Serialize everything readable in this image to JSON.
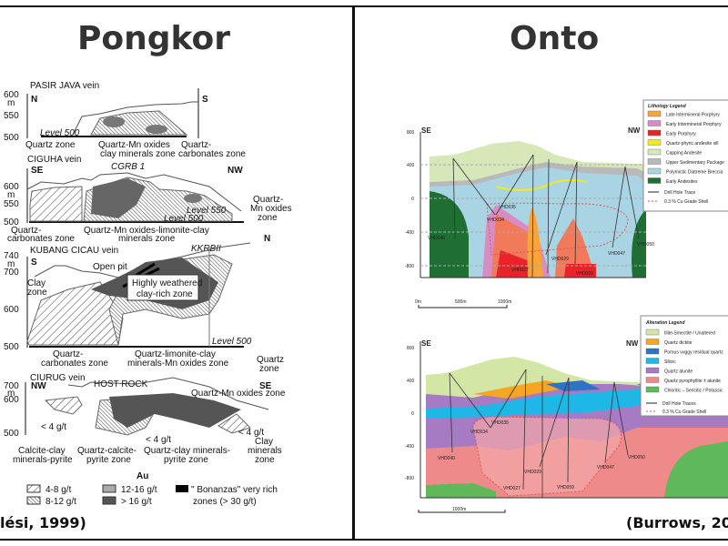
{
  "left_panel": {
    "title": "Pongkor",
    "citation": "lési, 1999)",
    "pasir_java": {
      "name": "PASIR JAVA vein",
      "left_dir": "N",
      "right_dir": "S",
      "unit": "m",
      "ticks": [
        "600",
        "550",
        "500"
      ],
      "level": "Level 500",
      "zones": [
        "Quartz zone",
        "Quartz-Mn oxides",
        "clay minerals zone",
        "Quartz-",
        "carbonates zone"
      ]
    },
    "ciguha": {
      "name": "CIGUHA vein",
      "left_dir": "SE",
      "right_dir": "NW",
      "unit": "m",
      "borehole": "CGRB 1",
      "ticks": [
        "600",
        "550",
        "500"
      ],
      "level_550": "Level 550",
      "level_500": "Level 500",
      "zones": [
        "Quartz-",
        "carbonates zone",
        "Quartz-Mn oxides-limonite-clay",
        "minerals zone",
        "Quartz-",
        "Mn oxides",
        "zone"
      ]
    },
    "kubang_cicau": {
      "name": "KUBANG CICAU vein",
      "left_dir": "S",
      "right_dir": "N",
      "unit": "m",
      "borehole": "KKRBII",
      "ticks": [
        "740",
        "700",
        "600",
        "500"
      ],
      "open_pit": "Open pit",
      "level": "Level 500",
      "weathered": [
        "Highly weathered",
        "clay-rich zone"
      ],
      "zones": [
        "Clay",
        "zone",
        "Quartz-",
        "carbonates zone",
        "Quartz-limonite-clay",
        "minerals-Mn oxides zone",
        "Quartz",
        "zone"
      ]
    },
    "ciurug": {
      "name": "CIURUG vein",
      "left_dir": "NW",
      "right_dir": "SE",
      "unit": "m",
      "ticks": [
        "700",
        "600",
        "500"
      ],
      "host_rock": "HOST ROCK",
      "qmn": "Quartz-Mn oxides zone",
      "grade_labels": [
        "< 4 g/t",
        "< 4 g/t",
        "< 4 g/t"
      ],
      "zones": [
        "Calcite-clay",
        "minerals-pyrite",
        "Quartz-calcite-",
        "pyrite zone",
        "Quartz-clay minerals-",
        "pyrite zone",
        "Clay",
        "minerals",
        "zone"
      ]
    },
    "legend": {
      "title": "Au",
      "items": [
        "4-8 g/t",
        "8-12 g/t",
        "12-16 g/t",
        "> 16 g/t",
        "\" Bonanzas\" very rich",
        "zones (> 30 g/t)"
      ]
    }
  },
  "right_panel": {
    "title": "Onto",
    "citation": "(Burrows, 202",
    "top_section": {
      "left_dir": "SE",
      "right_dir": "NW",
      "y_ticks": [
        "800",
        "400",
        "0",
        "-400",
        "-800"
      ],
      "scale": [
        "0m",
        "500m",
        "1000m"
      ],
      "holes": [
        "VHD040",
        "VHD034",
        "VHD035",
        "VHD027",
        "VHD029",
        "VHD059",
        "VHD047",
        "VHD050"
      ],
      "legend": {
        "title": "Lithology Legend",
        "items": [
          {
            "label": "Late Intermineral Porphyry",
            "color": "#f7a53a"
          },
          {
            "label": "Early Intermineral Porphyry",
            "color": "#d98cc4"
          },
          {
            "label": "Early Porphyry",
            "color": "#e8242a"
          },
          {
            "label": "Quartz-phyric andesite sill",
            "color": "#f2ea1c"
          },
          {
            "label": "Capping Andesite",
            "color": "#d6e8b8"
          },
          {
            "label": "Upper Sedimentary Package",
            "color": "#b9b9b9"
          },
          {
            "label": "Polymictic Diatreme Breccia",
            "color": "#a9d4e3"
          },
          {
            "label": "Early Andesites",
            "color": "#1f6f35"
          }
        ],
        "drill": "Drill Hole Trace",
        "shell": "0.3 % Cu Grade Shell"
      }
    },
    "bottom_section": {
      "left_dir": "SE",
      "right_dir": "NW",
      "y_ticks": [
        "800",
        "400",
        "0",
        "-400",
        "-800"
      ],
      "scale": [
        "1000m"
      ],
      "holes": [
        "VHD040",
        "VHD034",
        "VHD035",
        "VHD027",
        "VHD029",
        "VHD059",
        "VHD047",
        "VHD050"
      ],
      "legend": {
        "title": "Alteration Legend",
        "items": [
          {
            "label": "Illite-Smectite / Unaltered",
            "color": "#d3e6a6"
          },
          {
            "label": "Quartz dickite",
            "color": "#f5a623"
          },
          {
            "label": "Porous vuggy residual quartz",
            "color": "#2f73c4"
          },
          {
            "label": "Silicic",
            "color": "#1fb8e6"
          },
          {
            "label": "Quartz alunite",
            "color": "#a77bc4"
          },
          {
            "label": "Quartz pyrophyllite ± alunite",
            "color": "#ee8a8a"
          },
          {
            "label": "Chloritic – Sericitic / Potassic",
            "color": "#5fb95a"
          }
        ],
        "drill": "Drill Hole Traces",
        "shell": "0.3 % Cu Grade Shell"
      }
    }
  }
}
